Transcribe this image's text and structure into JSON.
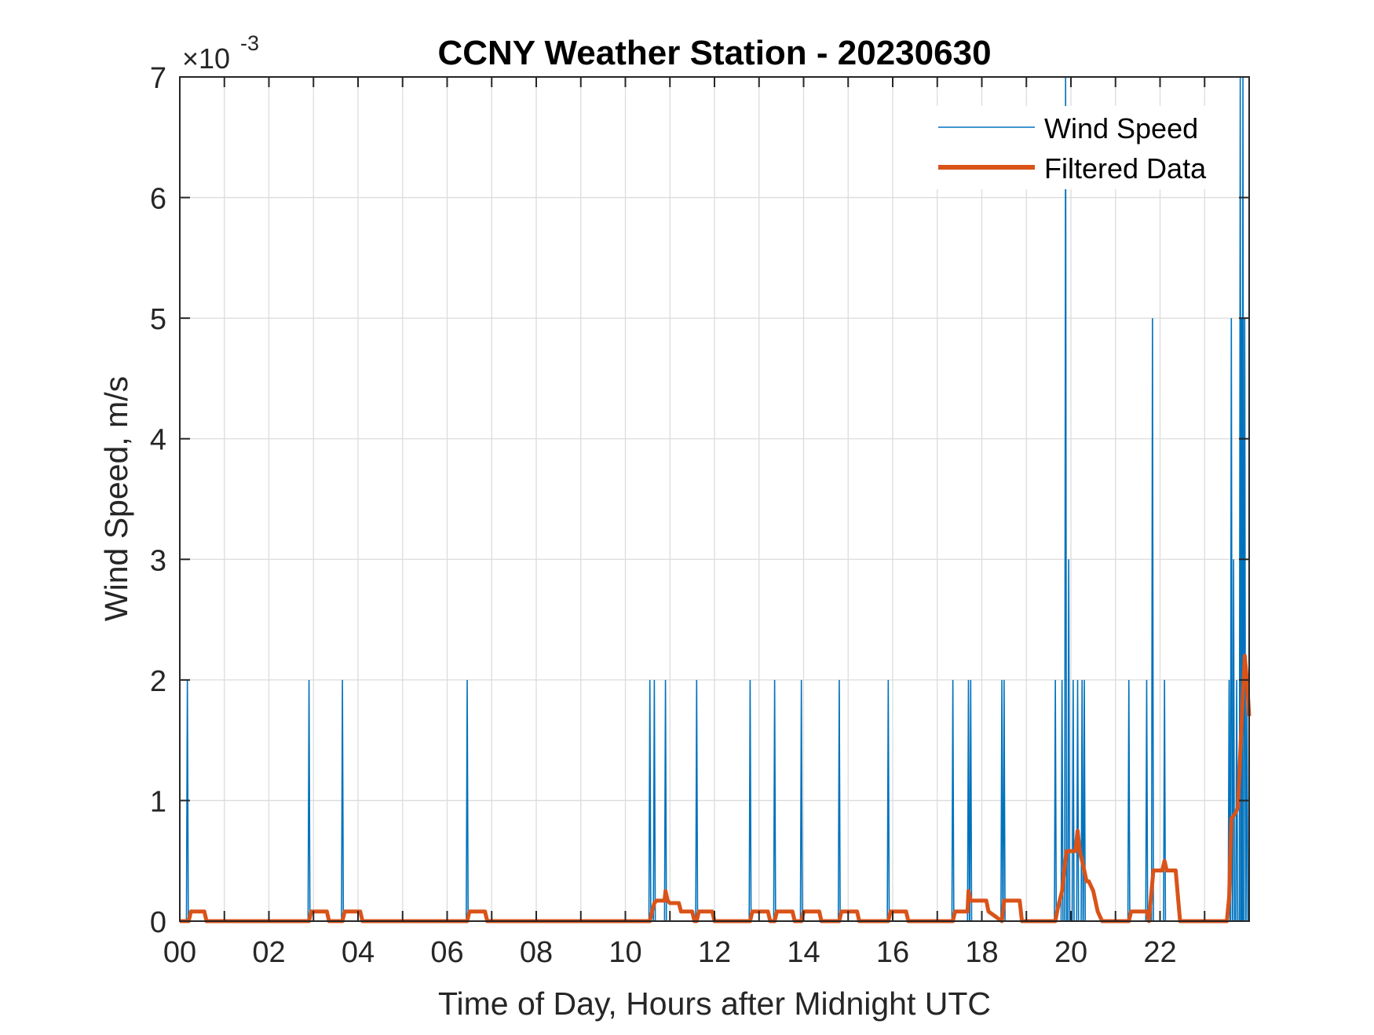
{
  "chart_data": {
    "type": "line",
    "title": "CCNY Weather Station - 20230630",
    "xlabel": "Time of Day, Hours after Midnight UTC",
    "ylabel": "Wind Speed, m/s",
    "y_exponent_label": "×10",
    "y_exponent_power": "-3",
    "xlim": [
      0,
      24
    ],
    "ylim": [
      0,
      7
    ],
    "x_tick_values": [
      0,
      2,
      4,
      6,
      8,
      10,
      12,
      14,
      16,
      18,
      20,
      22
    ],
    "x_tick_labels": [
      "00",
      "02",
      "04",
      "06",
      "08",
      "10",
      "12",
      "14",
      "16",
      "18",
      "20",
      "22"
    ],
    "y_tick_values": [
      0,
      1,
      2,
      3,
      4,
      5,
      6,
      7
    ],
    "y_tick_labels": [
      "0",
      "1",
      "2",
      "3",
      "4",
      "5",
      "6",
      "7"
    ],
    "x_minor_step_hours": 1,
    "grid": true,
    "legend_position": "top-right",
    "series": [
      {
        "name": "Wind Speed",
        "color": "#0072BD",
        "line_width": "thin",
        "spikes": [
          {
            "x": 0.17,
            "y": 2
          },
          {
            "x": 2.9,
            "y": 2
          },
          {
            "x": 3.65,
            "y": 2
          },
          {
            "x": 6.45,
            "y": 2
          },
          {
            "x": 10.55,
            "y": 2
          },
          {
            "x": 10.65,
            "y": 2
          },
          {
            "x": 10.9,
            "y": 2
          },
          {
            "x": 11.6,
            "y": 2
          },
          {
            "x": 12.8,
            "y": 2
          },
          {
            "x": 13.35,
            "y": 2
          },
          {
            "x": 13.95,
            "y": 2
          },
          {
            "x": 14.8,
            "y": 2
          },
          {
            "x": 15.9,
            "y": 2
          },
          {
            "x": 17.35,
            "y": 2
          },
          {
            "x": 17.7,
            "y": 2
          },
          {
            "x": 17.75,
            "y": 2
          },
          {
            "x": 18.45,
            "y": 2
          },
          {
            "x": 18.5,
            "y": 2
          },
          {
            "x": 19.65,
            "y": 2
          },
          {
            "x": 19.8,
            "y": 2
          },
          {
            "x": 19.88,
            "y": 7
          },
          {
            "x": 19.95,
            "y": 3
          },
          {
            "x": 20.05,
            "y": 2
          },
          {
            "x": 20.15,
            "y": 2
          },
          {
            "x": 20.25,
            "y": 2
          },
          {
            "x": 20.3,
            "y": 2
          },
          {
            "x": 21.3,
            "y": 2
          },
          {
            "x": 21.7,
            "y": 2
          },
          {
            "x": 21.83,
            "y": 5
          },
          {
            "x": 22.1,
            "y": 2
          },
          {
            "x": 23.55,
            "y": 2
          },
          {
            "x": 23.6,
            "y": 5
          },
          {
            "x": 23.65,
            "y": 3
          },
          {
            "x": 23.72,
            "y": 2
          },
          {
            "x": 23.8,
            "y": 7
          },
          {
            "x": 23.83,
            "y": 5
          },
          {
            "x": 23.86,
            "y": 7
          },
          {
            "x": 23.9,
            "y": 5
          },
          {
            "x": 23.95,
            "y": 2
          }
        ]
      },
      {
        "name": "Filtered Data",
        "color": "#D95319",
        "line_width": "thick",
        "x": [
          0,
          0.2,
          0.25,
          0.55,
          0.6,
          2.9,
          2.95,
          3.3,
          3.35,
          3.65,
          3.7,
          4.05,
          4.1,
          6.45,
          6.5,
          6.85,
          6.9,
          10.55,
          10.6,
          10.65,
          10.7,
          10.88,
          10.9,
          10.95,
          11.0,
          11.2,
          11.25,
          11.5,
          11.55,
          11.6,
          11.65,
          11.95,
          12.0,
          12.8,
          12.85,
          13.2,
          13.25,
          13.35,
          13.4,
          13.75,
          13.8,
          13.95,
          14.0,
          14.35,
          14.4,
          14.8,
          14.85,
          15.2,
          15.25,
          15.9,
          15.95,
          16.3,
          16.35,
          17.35,
          17.4,
          17.68,
          17.7,
          17.75,
          17.8,
          18.1,
          18.15,
          18.45,
          18.5,
          18.85,
          18.9,
          19.65,
          19.7,
          19.8,
          19.85,
          19.9,
          20.1,
          20.15,
          20.2,
          20.25,
          20.3,
          20.35,
          20.4,
          20.5,
          20.6,
          20.7,
          21.3,
          21.35,
          21.7,
          21.75,
          21.85,
          22.05,
          22.1,
          22.15,
          22.2,
          22.35,
          22.45,
          23.5,
          23.55,
          23.6,
          23.7,
          23.75,
          23.8,
          23.85,
          23.9,
          23.95,
          24.0
        ],
        "values": [
          0,
          0,
          0.08,
          0.08,
          0,
          0,
          0.08,
          0.08,
          0,
          0,
          0.08,
          0.08,
          0,
          0,
          0.08,
          0.08,
          0,
          0,
          0.08,
          0.15,
          0.17,
          0.17,
          0.25,
          0.17,
          0.15,
          0.15,
          0.08,
          0.08,
          0,
          0,
          0.08,
          0.08,
          0,
          0,
          0.08,
          0.08,
          0,
          0,
          0.08,
          0.08,
          0,
          0,
          0.08,
          0.08,
          0,
          0,
          0.08,
          0.08,
          0,
          0,
          0.08,
          0.08,
          0,
          0,
          0.08,
          0.08,
          0.25,
          0.17,
          0.17,
          0.17,
          0.08,
          0,
          0.17,
          0.17,
          0,
          0,
          0.1,
          0.25,
          0.42,
          0.58,
          0.58,
          0.75,
          0.58,
          0.5,
          0.42,
          0.33,
          0.33,
          0.25,
          0.08,
          0,
          0,
          0.08,
          0.08,
          0,
          0.42,
          0.42,
          0.5,
          0.42,
          0.42,
          0.42,
          0,
          0,
          0.2,
          0.85,
          0.9,
          0.95,
          1.4,
          1.8,
          2.2,
          2.0,
          1.7
        ]
      }
    ]
  }
}
